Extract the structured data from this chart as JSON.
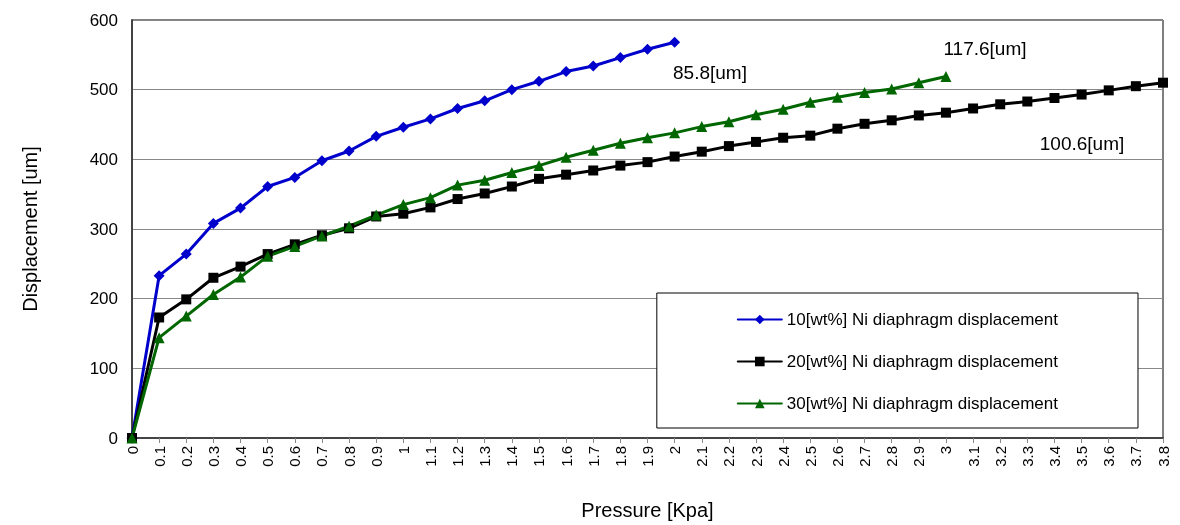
{
  "chart_data": {
    "type": "line",
    "xlabel": "Pressure [Kpa]",
    "ylabel": "Displacement [um]",
    "xlim": [
      0,
      3.8
    ],
    "xticks": [
      0,
      0.1,
      0.2,
      0.3,
      0.4,
      0.5,
      0.6,
      0.7,
      0.8,
      0.9,
      1,
      1.1,
      1.2,
      1.3,
      1.4,
      1.5,
      1.6,
      1.7,
      1.8,
      1.9,
      2,
      2.1,
      2.2,
      2.3,
      2.4,
      2.5,
      2.6,
      2.7,
      2.8,
      2.9,
      3,
      3.1,
      3.2,
      3.3,
      3.4,
      3.5,
      3.6,
      3.7,
      3.8
    ],
    "ylim": [
      0,
      600
    ],
    "yticks": [
      0,
      100,
      200,
      300,
      400,
      500,
      600
    ],
    "grid": "y",
    "legend": "bottom right",
    "line_style": "solid",
    "series": [
      {
        "name": "10[wt%] Ni diaphragm displacement",
        "color": "#0000cc",
        "marker": "diamond",
        "x": [
          0,
          0.1,
          0.2,
          0.3,
          0.4,
          0.5,
          0.6,
          0.7,
          0.8,
          0.9,
          1,
          1.1,
          1.2,
          1.3,
          1.4,
          1.5,
          1.6,
          1.7,
          1.8,
          1.9,
          2
        ],
        "values": [
          0,
          233,
          264,
          308,
          330,
          361,
          374,
          398,
          412,
          433,
          446,
          458,
          473,
          484,
          500,
          512,
          526,
          534,
          546,
          558,
          568
        ]
      },
      {
        "name": "20[wt%] Ni diaphragm displacement",
        "color": "#000000",
        "marker": "square",
        "x": [
          0,
          0.1,
          0.2,
          0.3,
          0.4,
          0.5,
          0.6,
          0.7,
          0.8,
          0.9,
          1,
          1.1,
          1.2,
          1.3,
          1.4,
          1.5,
          1.6,
          1.7,
          1.8,
          1.9,
          2,
          2.1,
          2.2,
          2.3,
          2.4,
          2.5,
          2.6,
          2.7,
          2.8,
          2.9,
          3,
          3.1,
          3.2,
          3.3,
          3.4,
          3.5,
          3.6,
          3.7,
          3.8
        ],
        "values": [
          0,
          173,
          199,
          230,
          246,
          264,
          278,
          291,
          301,
          318,
          322,
          331,
          343,
          351,
          361,
          372,
          378,
          384,
          391,
          396,
          404,
          411,
          419,
          425,
          431,
          434,
          444,
          451,
          456,
          463,
          467,
          473,
          479,
          483,
          488,
          493,
          499,
          505,
          510
        ]
      },
      {
        "name": "30[wt%] Ni diaphragm displacement",
        "color": "#006600",
        "marker": "triangle",
        "x": [
          0,
          0.1,
          0.2,
          0.3,
          0.4,
          0.5,
          0.6,
          0.7,
          0.8,
          0.9,
          1,
          1.1,
          1.2,
          1.3,
          1.4,
          1.5,
          1.6,
          1.7,
          1.8,
          1.9,
          2,
          2.1,
          2.2,
          2.3,
          2.4,
          2.5,
          2.6,
          2.7,
          2.8,
          2.9,
          3
        ],
        "values": [
          0,
          144,
          175,
          206,
          231,
          261,
          275,
          290,
          304,
          320,
          335,
          345,
          363,
          370,
          381,
          391,
          403,
          413,
          423,
          431,
          438,
          447,
          454,
          464,
          472,
          482,
          489,
          496,
          501,
          510,
          519
        ]
      }
    ],
    "annotations": [
      "85.8[um]",
      "117.6[um]",
      "100.6[um]"
    ]
  }
}
